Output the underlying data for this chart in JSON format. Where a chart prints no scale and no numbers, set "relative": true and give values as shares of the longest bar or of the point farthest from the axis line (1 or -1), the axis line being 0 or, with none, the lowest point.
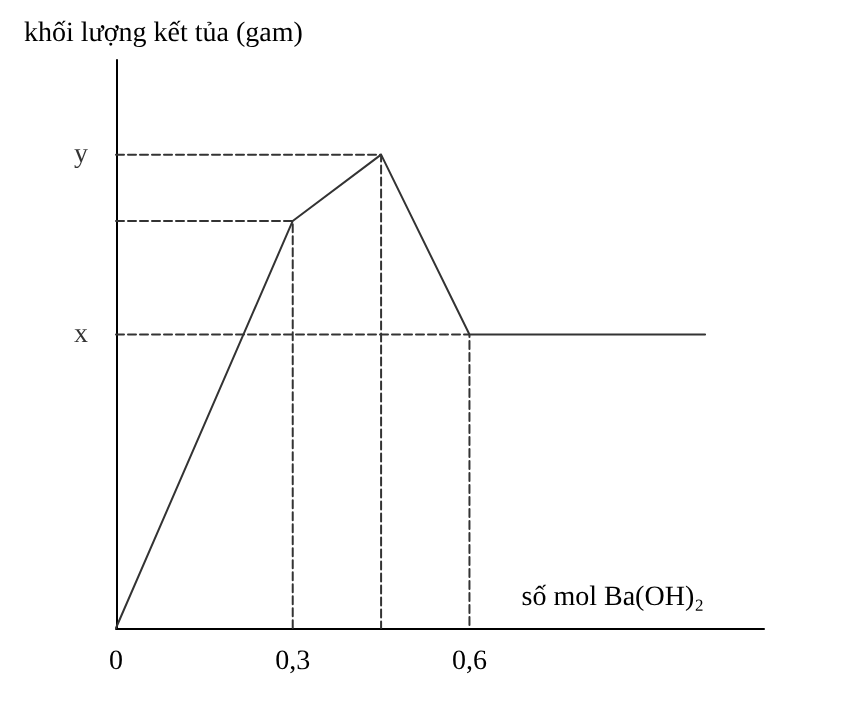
{
  "chart_data": {
    "type": "line",
    "relative": true,
    "xlabel": "số mol Ba(OH)₂",
    "ylabel": "khối lượng kết tủa (gam)",
    "xlim": [
      0,
      1.1
    ],
    "xticks": [
      {
        "value": 0,
        "label": "0"
      },
      {
        "value": 0.3,
        "label": "0,3"
      },
      {
        "value": 0.6,
        "label": "0,6"
      }
    ],
    "series": [
      {
        "color": "#333333",
        "x": [
          0,
          0.3,
          0.45,
          0.6,
          1.0
        ],
        "values": [
          0,
          0.86,
          1,
          0.62,
          0.62
        ]
      },
      {
        "color": "#333333",
        "line_style": "dashed",
        "x": [
          0,
          0.3,
          0.3
        ],
        "values": [
          0.86,
          0.86,
          0
        ]
      },
      {
        "color": "#333333",
        "line_style": "dashed",
        "x": [
          0,
          0.45,
          0.45
        ],
        "values": [
          1,
          1,
          0
        ]
      },
      {
        "color": "#333333",
        "line_style": "dashed",
        "x": [
          0,
          0.6,
          0.6
        ],
        "values": [
          0.62,
          0.62,
          0
        ]
      }
    ],
    "annotations": [
      {
        "text": "x",
        "x": 0,
        "y": 0.62
      },
      {
        "text": "y",
        "x": 0,
        "y": 1
      }
    ],
    "grid": false,
    "marker": "none"
  }
}
